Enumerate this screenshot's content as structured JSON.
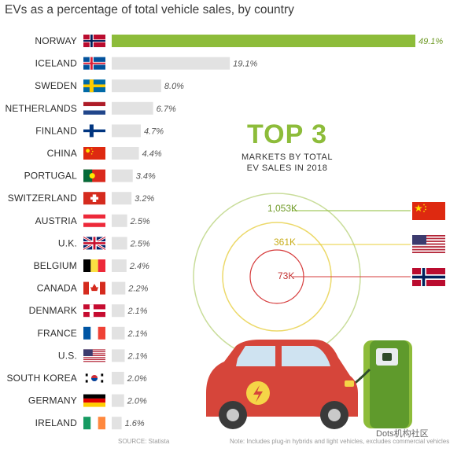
{
  "chart_data": {
    "type": "bar",
    "orientation": "horizontal",
    "title": "EVs as a percentage of total vehicle sales, by country",
    "categories": [
      "NORWAY",
      "ICELAND",
      "SWEDEN",
      "NETHERLANDS",
      "FINLAND",
      "CHINA",
      "PORTUGAL",
      "SWITZERLAND",
      "AUSTRIA",
      "U.K.",
      "BELGIUM",
      "CANADA",
      "DENMARK",
      "FRANCE",
      "U.S.",
      "SOUTH KOREA",
      "GERMANY",
      "IRELAND"
    ],
    "values": [
      49.1,
      19.1,
      8.0,
      6.7,
      4.7,
      4.4,
      3.4,
      3.2,
      2.5,
      2.5,
      2.4,
      2.2,
      2.1,
      2.1,
      2.1,
      2.0,
      2.0,
      1.6
    ],
    "value_labels": [
      "49.1%",
      "19.1%",
      "8.0%",
      "6.7%",
      "4.7%",
      "4.4%",
      "3.4%",
      "3.2%",
      "2.5%",
      "2.5%",
      "2.4%",
      "2.2%",
      "2.1%",
      "2.1%",
      "2.1%",
      "2.0%",
      "2.0%",
      "1.6%"
    ],
    "flags": [
      "norway-flag-icon",
      "iceland-flag-icon",
      "sweden-flag-icon",
      "netherlands-flag-icon",
      "finland-flag-icon",
      "china-flag-icon",
      "portugal-flag-icon",
      "switzerland-flag-icon",
      "austria-flag-icon",
      "uk-flag-icon",
      "belgium-flag-icon",
      "canada-flag-icon",
      "denmark-flag-icon",
      "france-flag-icon",
      "us-flag-icon",
      "south-korea-flag-icon",
      "germany-flag-icon",
      "ireland-flag-icon"
    ],
    "xlim": [
      0,
      49.1
    ],
    "highlight_color": "#8dbc3a",
    "bar_color": "#e2e2e2",
    "grid": false,
    "legend": "none"
  },
  "top3": {
    "title": "TOP 3",
    "subtitle_line1": "MARKETS BY TOTAL",
    "subtitle_line2": "EV SALES IN 2018",
    "markets": [
      {
        "label": "1,053K",
        "flag": "china-flag-icon",
        "color": "#8dbc3a"
      },
      {
        "label": "361K",
        "flag": "us-flag-icon",
        "color": "#e8cf3a"
      },
      {
        "label": "73K",
        "flag": "norway-flag-icon",
        "color": "#d63b3b"
      }
    ]
  },
  "footer": {
    "source": "SOURCE: Statista",
    "note": "Note: Includes plug-in hybrids and light vehicles, excludes commercial vehicles"
  },
  "watermark": "Dots机构社区"
}
